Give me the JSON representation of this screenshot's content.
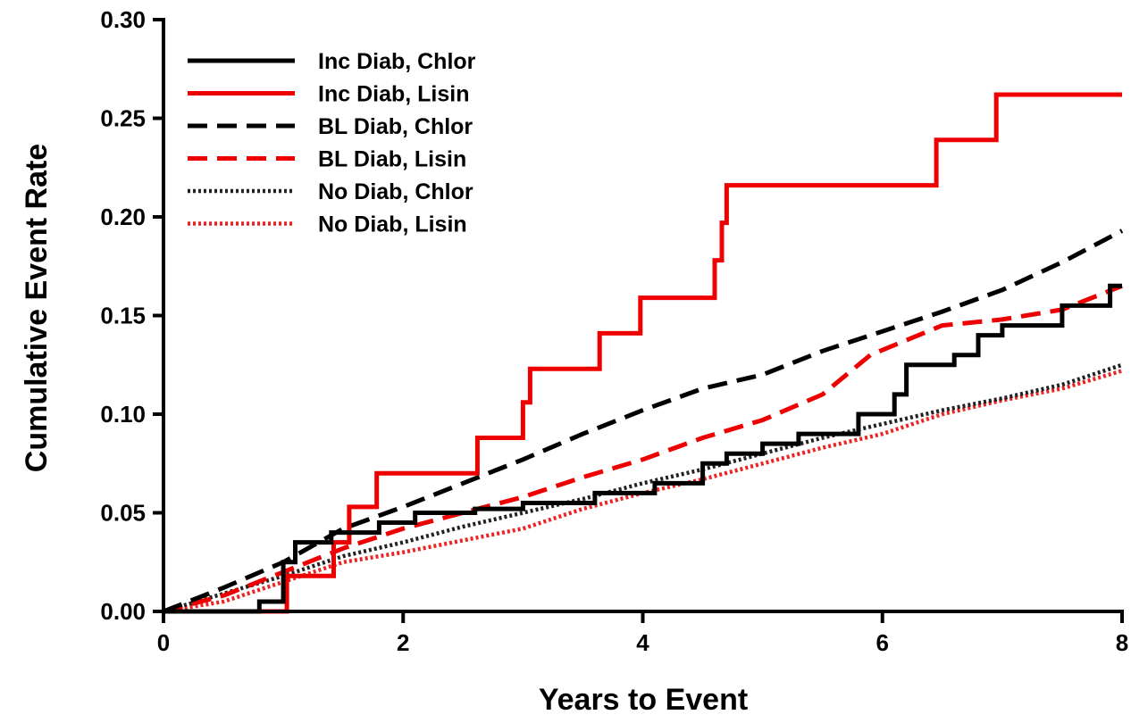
{
  "chart_data": {
    "type": "line",
    "xlabel": "Years to Event",
    "ylabel": "Cumulative Event Rate",
    "xlim": [
      0,
      8
    ],
    "ylim": [
      0,
      0.3
    ],
    "x_ticks": [
      {
        "value": 0,
        "label": "0"
      },
      {
        "value": 2,
        "label": "2"
      },
      {
        "value": 4,
        "label": "4"
      },
      {
        "value": 6,
        "label": "6"
      },
      {
        "value": 8,
        "label": "8"
      }
    ],
    "y_ticks": [
      {
        "value": 0.0,
        "label": "0.00"
      },
      {
        "value": 0.05,
        "label": "0.05"
      },
      {
        "value": 0.1,
        "label": "0.10"
      },
      {
        "value": 0.15,
        "label": "0.15"
      },
      {
        "value": 0.2,
        "label": "0.20"
      },
      {
        "value": 0.25,
        "label": "0.25"
      },
      {
        "value": 0.3,
        "label": "0.30"
      }
    ],
    "legend_position": "top-left",
    "grid": false,
    "series": [
      {
        "name": "Inc Diab, Chlor",
        "color": "#000000",
        "dash": "solid",
        "step": true,
        "points": [
          [
            0,
            0
          ],
          [
            0.8,
            0.005
          ],
          [
            1.0,
            0.025
          ],
          [
            1.1,
            0.035
          ],
          [
            1.4,
            0.04
          ],
          [
            1.8,
            0.045
          ],
          [
            2.1,
            0.05
          ],
          [
            2.6,
            0.052
          ],
          [
            3.0,
            0.055
          ],
          [
            3.6,
            0.06
          ],
          [
            4.1,
            0.065
          ],
          [
            4.5,
            0.075
          ],
          [
            4.7,
            0.08
          ],
          [
            5.0,
            0.085
          ],
          [
            5.3,
            0.09
          ],
          [
            5.8,
            0.1
          ],
          [
            6.1,
            0.11
          ],
          [
            6.2,
            0.125
          ],
          [
            6.6,
            0.13
          ],
          [
            6.8,
            0.14
          ],
          [
            7.0,
            0.145
          ],
          [
            7.5,
            0.155
          ],
          [
            7.9,
            0.165
          ],
          [
            8.0,
            0.165
          ]
        ]
      },
      {
        "name": "Inc Diab, Lisin",
        "color": "#ee0000",
        "dash": "solid",
        "step": true,
        "points": [
          [
            0,
            0
          ],
          [
            1.03,
            0
          ],
          [
            1.03,
            0.018
          ],
          [
            1.42,
            0.018
          ],
          [
            1.42,
            0.035
          ],
          [
            1.55,
            0.035
          ],
          [
            1.55,
            0.053
          ],
          [
            1.78,
            0.053
          ],
          [
            1.78,
            0.07
          ],
          [
            2.62,
            0.07
          ],
          [
            2.62,
            0.088
          ],
          [
            3.0,
            0.088
          ],
          [
            3.0,
            0.106
          ],
          [
            3.06,
            0.106
          ],
          [
            3.06,
            0.123
          ],
          [
            3.64,
            0.123
          ],
          [
            3.64,
            0.141
          ],
          [
            3.98,
            0.141
          ],
          [
            3.98,
            0.159
          ],
          [
            4.6,
            0.159
          ],
          [
            4.6,
            0.178
          ],
          [
            4.66,
            0.178
          ],
          [
            4.66,
            0.197
          ],
          [
            4.7,
            0.197
          ],
          [
            4.7,
            0.216
          ],
          [
            6.45,
            0.216
          ],
          [
            6.45,
            0.239
          ],
          [
            6.95,
            0.239
          ],
          [
            6.95,
            0.262
          ],
          [
            8.0,
            0.262
          ]
        ]
      },
      {
        "name": "BL Diab, Chlor",
        "color": "#000000",
        "dash": "long",
        "step": false,
        "points": [
          [
            0,
            0
          ],
          [
            0.5,
            0.012
          ],
          [
            1.0,
            0.025
          ],
          [
            1.5,
            0.042
          ],
          [
            2.0,
            0.053
          ],
          [
            2.5,
            0.065
          ],
          [
            3.0,
            0.077
          ],
          [
            3.5,
            0.09
          ],
          [
            4.0,
            0.102
          ],
          [
            4.5,
            0.113
          ],
          [
            5.0,
            0.12
          ],
          [
            5.5,
            0.132
          ],
          [
            6.0,
            0.142
          ],
          [
            6.5,
            0.152
          ],
          [
            7.0,
            0.163
          ],
          [
            7.5,
            0.177
          ],
          [
            8.0,
            0.193
          ]
        ]
      },
      {
        "name": "BL Diab, Lisin",
        "color": "#ee0000",
        "dash": "long",
        "step": false,
        "points": [
          [
            0,
            0
          ],
          [
            0.5,
            0.008
          ],
          [
            1.0,
            0.02
          ],
          [
            1.5,
            0.032
          ],
          [
            2.0,
            0.042
          ],
          [
            2.5,
            0.05
          ],
          [
            3.0,
            0.058
          ],
          [
            3.5,
            0.068
          ],
          [
            4.0,
            0.077
          ],
          [
            4.5,
            0.088
          ],
          [
            5.0,
            0.097
          ],
          [
            5.5,
            0.11
          ],
          [
            5.9,
            0.13
          ],
          [
            6.3,
            0.14
          ],
          [
            6.5,
            0.145
          ],
          [
            7.0,
            0.148
          ],
          [
            7.5,
            0.153
          ],
          [
            8.0,
            0.165
          ]
        ]
      },
      {
        "name": "No Diab, Chlor",
        "color": "#222222",
        "dash": "dot",
        "step": false,
        "points": [
          [
            0,
            0
          ],
          [
            0.5,
            0.009
          ],
          [
            1.0,
            0.018
          ],
          [
            1.5,
            0.028
          ],
          [
            2.0,
            0.035
          ],
          [
            2.5,
            0.043
          ],
          [
            3.0,
            0.05
          ],
          [
            3.5,
            0.057
          ],
          [
            4.0,
            0.065
          ],
          [
            4.5,
            0.072
          ],
          [
            5.0,
            0.08
          ],
          [
            5.5,
            0.088
          ],
          [
            6.0,
            0.095
          ],
          [
            6.5,
            0.102
          ],
          [
            7.0,
            0.108
          ],
          [
            7.5,
            0.115
          ],
          [
            8.0,
            0.125
          ]
        ]
      },
      {
        "name": "No Diab, Lisin",
        "color": "#ee2222",
        "dash": "dot",
        "step": false,
        "points": [
          [
            0,
            0
          ],
          [
            0.5,
            0.005
          ],
          [
            1.0,
            0.015
          ],
          [
            1.5,
            0.025
          ],
          [
            2.0,
            0.03
          ],
          [
            2.5,
            0.036
          ],
          [
            3.0,
            0.042
          ],
          [
            3.5,
            0.052
          ],
          [
            4.0,
            0.06
          ],
          [
            4.5,
            0.067
          ],
          [
            5.0,
            0.075
          ],
          [
            5.5,
            0.083
          ],
          [
            6.0,
            0.09
          ],
          [
            6.5,
            0.1
          ],
          [
            7.0,
            0.107
          ],
          [
            7.5,
            0.113
          ],
          [
            8.0,
            0.122
          ]
        ]
      }
    ]
  }
}
